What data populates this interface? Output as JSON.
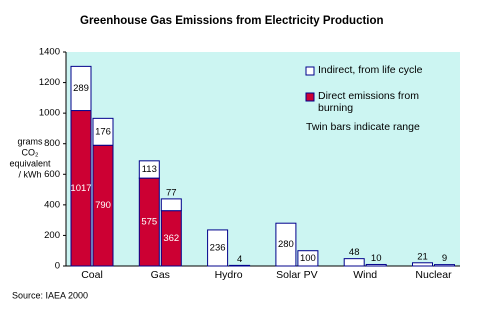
{
  "chart_data": {
    "type": "twin-stacked-bar",
    "title": "Greenhouse Gas Emissions from Electricity Production",
    "y_label": [
      "grams",
      "CO₂",
      "equivalent",
      "/ kWh"
    ],
    "categories": [
      "Coal",
      "Gas",
      "Hydro",
      "Solar PV",
      "Wind",
      "Nuclear"
    ],
    "series": [
      {
        "name": "Direct emissions from burning",
        "color": "#cc0033",
        "values": [
          [
            1017,
            790
          ],
          [
            575,
            362
          ],
          [
            0,
            0
          ],
          [
            0,
            0
          ],
          [
            0,
            0
          ],
          [
            0,
            0
          ]
        ]
      },
      {
        "name": "Indirect, from life cycle",
        "color": "#ffffff",
        "values": [
          [
            289,
            176
          ],
          [
            113,
            77
          ],
          [
            236,
            4
          ],
          [
            280,
            100
          ],
          [
            48,
            10
          ],
          [
            21,
            9
          ]
        ]
      }
    ],
    "annotation": "Twin bars indicate range",
    "source": "Source: IAEA 2000",
    "ylim": [
      0,
      1400
    ],
    "yticks": [
      0,
      200,
      400,
      600,
      800,
      1000,
      1200,
      1400
    ],
    "grid": false
  }
}
